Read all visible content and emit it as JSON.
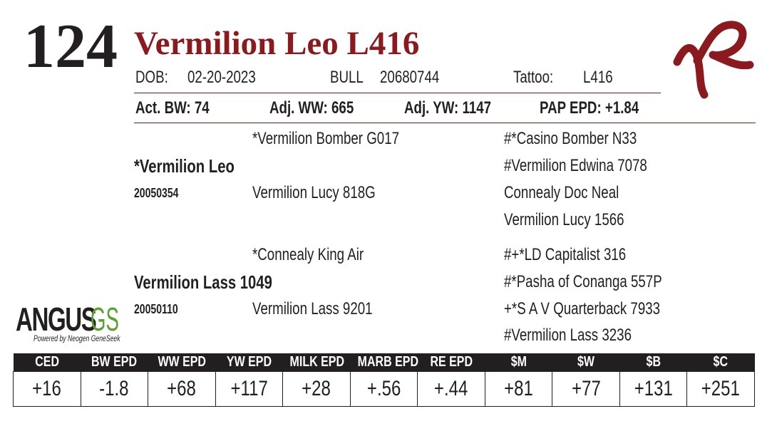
{
  "lot": "124",
  "name": "Vermilion Leo L416",
  "info": {
    "dob_label": "DOB:",
    "dob": "02-20-2023",
    "sex": "BULL",
    "registration": "20680744",
    "tattoo_label": "Tattoo:",
    "tattoo": "L416"
  },
  "stats": [
    "Act. BW: 74",
    "Adj. WW: 665",
    "Adj. YW: 1147",
    "PAP EPD: +1.84"
  ],
  "pedigree": {
    "sire": {
      "name": "*Vermilion Leo",
      "registration": "20050354",
      "sire": "*Vermilion Bomber G017",
      "dam": "Vermilion Lucy 818G",
      "grandparents": [
        "#*Casino Bomber N33",
        "#Vermilion Edwina 7078",
        "Connealy Doc Neal",
        "Vermilion Lucy 1566"
      ]
    },
    "dam": {
      "name": "Vermilion Lass 1049",
      "registration": "20050110",
      "sire": "*Connealy King Air",
      "dam": "Vermilion Lass 9201",
      "grandparents": [
        "#+*LD Capitalist 316",
        "#*Pasha of Conanga 557P",
        "+*S A V Quarterback 7933",
        "#Vermilion Lass 3236"
      ]
    }
  },
  "logo": {
    "word": "ANGUS",
    "suffix": "GS",
    "tagline": "Powered by Neogen GeneSeek"
  },
  "epd_table": {
    "headers": [
      "CED",
      "BW EPD",
      "WW EPD",
      "YW EPD",
      "MILK EPD",
      "MARB EPD",
      "RE EPD",
      "$M",
      "$W",
      "$B",
      "$C"
    ],
    "values": [
      "+16",
      "-1.8",
      "+68",
      "+117",
      "+28",
      "+.56",
      "+.44",
      "+81",
      "+77",
      "+131",
      "+251"
    ]
  }
}
